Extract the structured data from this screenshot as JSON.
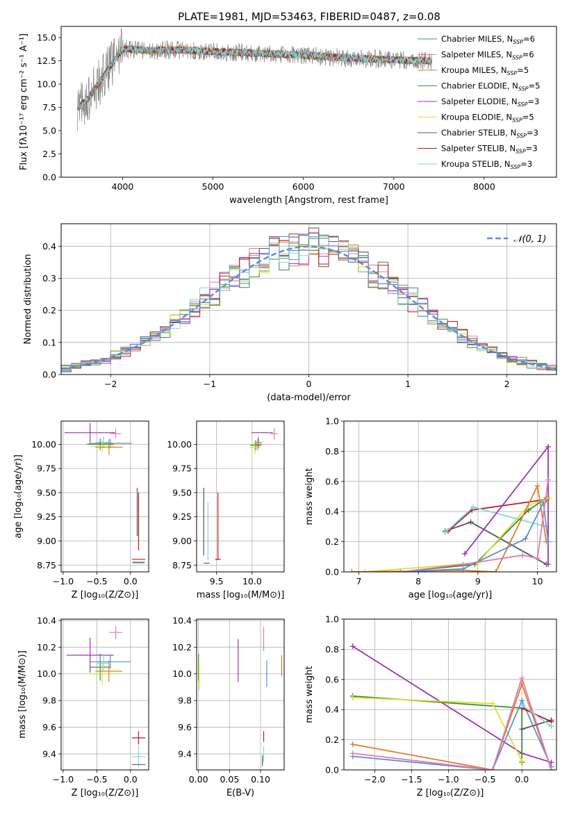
{
  "figure": {
    "title": "PLATE=1981, MJD=53463, FIBERID=0487, z=0.08"
  },
  "chart_data": [
    {
      "id": "spectrum",
      "type": "line",
      "xlabel": "wavelength [Angstrom, rest frame]",
      "ylabel": "Flux [fλ10⁻¹⁷ erg cm⁻² s⁻¹ A⁻¹]",
      "xlim": [
        3320,
        8800
      ],
      "ylim": [
        0,
        16.2
      ],
      "xticks": [
        4000,
        5000,
        6000,
        7000,
        8000
      ],
      "yticks": [
        0.0,
        2.5,
        5.0,
        7.5,
        10.0,
        12.5,
        15.0
      ],
      "grid": false,
      "legend_position": "top-right",
      "data_range": [
        3500,
        7420
      ],
      "continuum_model": {
        "x": [
          3500,
          3600,
          3800,
          4000,
          4300,
          4600,
          5000,
          5500,
          6000,
          6500,
          7000,
          7420
        ],
        "y": [
          7.5,
          8.2,
          11.0,
          13.8,
          13.6,
          13.7,
          13.5,
          13.3,
          13.1,
          12.8,
          12.6,
          12.5
        ]
      },
      "series": [
        {
          "name": "Chabrier MILES, N_SSP=6",
          "color": "#5a8a68"
        },
        {
          "name": "Salpeter MILES, N_SSP=6",
          "color": "#e07ab0"
        },
        {
          "name": "Kroupa MILES, N_SSP=5",
          "color": "#e07b2a"
        },
        {
          "name": "Chabrier ELODIE, N_SSP=5",
          "color": "#3a8a3a"
        },
        {
          "name": "Salpeter ELODIE, N_SSP=3",
          "color": "#a030b0"
        },
        {
          "name": "Kroupa ELODIE, N_SSP=5",
          "color": "#d8e030"
        },
        {
          "name": "Chabrier STELIB, N_SSP=3",
          "color": "#555555"
        },
        {
          "name": "Salpeter STELIB, N_SSP=3",
          "color": "#c01818"
        },
        {
          "name": "Kroupa STELIB, N_SSP=3",
          "color": "#7ad8e0"
        }
      ],
      "data_series": {
        "name": "data",
        "color": "#808080"
      }
    },
    {
      "id": "residuals",
      "type": "line",
      "xlabel": "(data-model)/error",
      "ylabel": "Normed distribution",
      "xlim": [
        -2.5,
        2.5
      ],
      "ylim": [
        0,
        0.47
      ],
      "xticks": [
        -2,
        -1,
        0,
        1,
        2
      ],
      "yticks": [
        0.0,
        0.1,
        0.2,
        0.3,
        0.4
      ],
      "grid": true,
      "legend_position": "top-right",
      "legend_label": "𝒩(0, 1)",
      "gaussian": {
        "mean": 0,
        "sigma": 1,
        "color": "#5b8fd6"
      },
      "histogram_bin_width": 0.1,
      "histogram_colors": [
        "#5a8a68",
        "#e07ab0",
        "#e07b2a",
        "#3a8a3a",
        "#a030b0",
        "#d8e030",
        "#555555",
        "#c01818",
        "#7ad8e0",
        "#5b8fd6"
      ]
    },
    {
      "id": "age_vs_Z",
      "type": "scatter",
      "xlabel": "Z [log₁₀(Z/Z⊙)]",
      "ylabel": "age  [log₁₀(age/yr)]",
      "xlim": [
        -1.03,
        0.27
      ],
      "ylim": [
        8.68,
        10.24
      ],
      "xticks": [
        -1.0,
        -0.5,
        0.0
      ],
      "xtick_labels": [
        "−1.0",
        "−0.5",
        "0.0"
      ],
      "yticks": [
        8.75,
        9.0,
        9.25,
        9.5,
        9.75,
        10.0
      ],
      "grid": true,
      "points": [
        {
          "x": -0.6,
          "y": 10.12,
          "xerr": 0.38,
          "yerr": 0.1,
          "color": "#a030b0"
        },
        {
          "x": -0.22,
          "y": 10.11,
          "xerr": 0.08,
          "yerr": 0.05,
          "color": "#e07ab0"
        },
        {
          "x": -0.3,
          "y": 10.01,
          "xerr": 0.32,
          "yerr": 0.05,
          "color": "#5b8fd6"
        },
        {
          "x": -0.4,
          "y": 10.02,
          "xerr": 0.12,
          "yerr": 0.06,
          "color": "#7ad8e0"
        },
        {
          "x": -0.45,
          "y": 10.0,
          "xerr": 0.2,
          "yerr": 0.06,
          "color": "#3a8a3a"
        },
        {
          "x": -0.42,
          "y": 9.98,
          "xerr": 0.18,
          "yerr": 0.06,
          "color": "#d8e030"
        },
        {
          "x": -0.32,
          "y": 9.97,
          "xerr": 0.2,
          "yerr": 0.08,
          "color": "#e07b2a"
        },
        {
          "x": 0.1,
          "y": 9.3,
          "xerr": 0.0,
          "yerr": 0.25,
          "color": "#555555"
        },
        {
          "x": 0.12,
          "y": 9.2,
          "xerr": 0.0,
          "yerr": 0.3,
          "color": "#c01818"
        },
        {
          "x": 0.12,
          "y": 8.81,
          "xerr": 0.1,
          "yerr": 0.0,
          "color": "#c01818"
        },
        {
          "x": 0.12,
          "y": 8.77,
          "xerr": 0.09,
          "yerr": 0.0,
          "color": "#7ad8e0"
        },
        {
          "x": 0.12,
          "y": 8.78,
          "xerr": 0.09,
          "yerr": 0.0,
          "color": "#555555"
        }
      ]
    },
    {
      "id": "age_vs_mass",
      "type": "scatter",
      "xlabel": "mass [log₁₀(M/M⊙)]",
      "ylabel": "",
      "xlim": [
        9.22,
        10.45
      ],
      "ylim": [
        8.68,
        10.24
      ],
      "xticks": [
        9.5,
        10.0
      ],
      "yticks": [
        8.75,
        9.0,
        9.25,
        9.5,
        9.75,
        10.0
      ],
      "grid": true,
      "points": [
        {
          "x": 10.14,
          "y": 10.12,
          "xerr": 0.15,
          "yerr": 0.0,
          "color": "#a030b0"
        },
        {
          "x": 10.31,
          "y": 10.11,
          "xerr": 0.05,
          "yerr": 0.06,
          "color": "#e07ab0"
        },
        {
          "x": 10.09,
          "y": 10.02,
          "xerr": 0.05,
          "yerr": 0.06,
          "color": "#5b8fd6"
        },
        {
          "x": 10.08,
          "y": 10.0,
          "xerr": 0.05,
          "yerr": 0.05,
          "color": "#7ad8e0"
        },
        {
          "x": 10.05,
          "y": 9.99,
          "xerr": 0.08,
          "yerr": 0.05,
          "color": "#3a8a3a"
        },
        {
          "x": 10.04,
          "y": 9.97,
          "xerr": 0.07,
          "yerr": 0.07,
          "color": "#d8e030"
        },
        {
          "x": 10.08,
          "y": 10.0,
          "xerr": 0.06,
          "yerr": 0.06,
          "color": "#e07b2a"
        },
        {
          "x": 9.32,
          "y": 9.2,
          "xerr": 0.0,
          "yerr": 0.35,
          "color": "#555555"
        },
        {
          "x": 9.52,
          "y": 9.15,
          "xerr": 0.0,
          "yerr": 0.35,
          "color": "#c01818"
        },
        {
          "x": 9.52,
          "y": 8.81,
          "xerr": 0.04,
          "yerr": 0.0,
          "color": "#c01818"
        },
        {
          "x": 9.38,
          "y": 9.1,
          "xerr": 0.0,
          "yerr": 0.3,
          "color": "#7ad8e0"
        },
        {
          "x": 9.36,
          "y": 8.77,
          "xerr": 0.04,
          "yerr": 0.0,
          "color": "#555555"
        }
      ]
    },
    {
      "id": "weight_vs_age",
      "type": "line",
      "xlabel": "age  [log₁₀(age/yr)]",
      "ylabel": "mass weight",
      "xlim": [
        6.75,
        10.32
      ],
      "ylim": [
        0,
        1.0
      ],
      "xticks": [
        7,
        8,
        9,
        10
      ],
      "yticks": [
        0.0,
        0.2,
        0.4,
        0.6,
        0.8,
        1.0
      ],
      "grid": true,
      "series": [
        {
          "color": "#555555",
          "x": [
            8.45,
            8.88,
            10.15
          ],
          "y": [
            0.27,
            0.33,
            0.05
          ]
        },
        {
          "color": "#c01818",
          "x": [
            8.5,
            8.9,
            10.15
          ],
          "y": [
            0.27,
            0.41,
            0.48
          ]
        },
        {
          "color": "#7ad8e0",
          "x": [
            8.45,
            8.92,
            10.15
          ],
          "y": [
            0.26,
            0.43,
            0.3
          ]
        },
        {
          "color": "#a030b0",
          "x": [
            8.78,
            10.18,
            10.18
          ],
          "y": [
            0.12,
            0.83,
            0.05
          ]
        },
        {
          "color": "#3a8a3a",
          "x": [
            7.7,
            8.95,
            9.85,
            10.15
          ],
          "y": [
            0.0,
            0.05,
            0.41,
            0.49
          ]
        },
        {
          "color": "#d8e030",
          "x": [
            7.1,
            9.0,
            9.85,
            10.2
          ],
          "y": [
            0.0,
            0.06,
            0.44,
            0.49
          ]
        },
        {
          "color": "#e07b2a",
          "x": [
            6.88,
            8.75,
            9.3,
            10.0,
            10.15
          ],
          "y": [
            0.0,
            0.01,
            0.0,
            0.57,
            0.2
          ]
        },
        {
          "color": "#5b8fd6",
          "x": [
            7.7,
            8.75,
            9.8,
            10.1,
            10.18
          ],
          "y": [
            0.0,
            0.02,
            0.22,
            0.46,
            0.2
          ]
        },
        {
          "color": "#e07ab0",
          "x": [
            7.7,
            8.75,
            9.75,
            10.0,
            10.18
          ],
          "y": [
            0.0,
            0.05,
            0.11,
            0.09,
            0.61
          ]
        }
      ]
    },
    {
      "id": "mass_vs_Z",
      "type": "scatter",
      "xlabel": "Z [log₁₀(Z/Z⊙)]",
      "ylabel": "mass [log₁₀(M/M⊙)]",
      "xlim": [
        -1.03,
        0.27
      ],
      "ylim": [
        9.28,
        10.41
      ],
      "xticks": [
        -1.0,
        -0.5,
        0.0
      ],
      "xtick_labels": [
        "−1.0",
        "−0.5",
        "0.0"
      ],
      "yticks": [
        9.4,
        9.6,
        9.8,
        10.0,
        10.2,
        10.4
      ],
      "grid": true,
      "points": [
        {
          "x": -0.6,
          "y": 10.14,
          "xerr": 0.35,
          "yerr": 0.13,
          "color": "#a030b0"
        },
        {
          "x": -0.22,
          "y": 10.31,
          "xerr": 0.1,
          "yerr": 0.05,
          "color": "#e07ab0"
        },
        {
          "x": -0.3,
          "y": 10.09,
          "xerr": 0.3,
          "yerr": 0.05,
          "color": "#5b8fd6"
        },
        {
          "x": -0.45,
          "y": 10.05,
          "xerr": 0.15,
          "yerr": 0.1,
          "color": "#3a8a3a"
        },
        {
          "x": -0.42,
          "y": 10.0,
          "xerr": 0.2,
          "yerr": 0.08,
          "color": "#d8e030"
        },
        {
          "x": -0.32,
          "y": 10.02,
          "xerr": 0.2,
          "yerr": 0.08,
          "color": "#e07b2a"
        },
        {
          "x": -0.4,
          "y": 10.08,
          "xerr": 0.1,
          "yerr": 0.06,
          "color": "#7ad8e0"
        },
        {
          "x": 0.12,
          "y": 9.52,
          "xerr": 0.1,
          "yerr": 0.05,
          "color": "#c01818"
        },
        {
          "x": 0.12,
          "y": 9.38,
          "xerr": 0.1,
          "yerr": 0.08,
          "color": "#7ad8e0"
        },
        {
          "x": 0.12,
          "y": 9.32,
          "xerr": 0.1,
          "yerr": 0.0,
          "color": "#555555"
        }
      ]
    },
    {
      "id": "mass_vs_ebv",
      "type": "scatter",
      "xlabel": "E(B-V)",
      "ylabel": "",
      "xlim": [
        -0.003,
        0.138
      ],
      "ylim": [
        9.28,
        10.41
      ],
      "xticks": [
        0.0,
        0.05,
        0.1
      ],
      "xtick_labels": [
        "0.00",
        "0.05",
        "0.10"
      ],
      "yticks": [
        9.4,
        9.6,
        9.8,
        10.0,
        10.2,
        10.4
      ],
      "grid": true,
      "points": [
        {
          "x": 0.0,
          "y": 10.05,
          "xerr": 0.0,
          "yerr": 0.1,
          "color": "#3a8a3a"
        },
        {
          "x": 0.001,
          "y": 9.98,
          "xerr": 0.0,
          "yerr": 0.1,
          "color": "#d8e030"
        },
        {
          "x": 0.064,
          "y": 10.1,
          "xerr": 0.0,
          "yerr": 0.16,
          "color": "#a030b0"
        },
        {
          "x": 0.105,
          "y": 10.26,
          "xerr": 0.0,
          "yerr": 0.09,
          "color": "#e07ab0"
        },
        {
          "x": 0.11,
          "y": 10.0,
          "xerr": 0.0,
          "yerr": 0.1,
          "color": "#5b8fd6"
        },
        {
          "x": 0.134,
          "y": 10.06,
          "xerr": 0.0,
          "yerr": 0.08,
          "color": "#e07b2a"
        },
        {
          "x": 0.105,
          "y": 9.53,
          "xerr": 0.0,
          "yerr": 0.04,
          "color": "#c01818"
        },
        {
          "x": 0.105,
          "y": 9.4,
          "xerr": 0.0,
          "yerr": 0.06,
          "color": "#7ad8e0"
        },
        {
          "x": 0.103,
          "y": 9.35,
          "xerr": 0.0,
          "yerr": 0.04,
          "color": "#555555"
        }
      ]
    },
    {
      "id": "weight_vs_Z",
      "type": "line",
      "xlabel": "Z [log₁₀(Z/Z⊙)]",
      "ylabel": "mass weight",
      "xlim": [
        -2.42,
        0.47
      ],
      "ylim": [
        0,
        1.0
      ],
      "xticks": [
        -2.0,
        -1.5,
        -1.0,
        -0.5,
        0.0
      ],
      "xtick_labels": [
        "−2.0",
        "−1.5",
        "−1.0",
        "−0.5",
        "0.0"
      ],
      "yticks": [
        0.0,
        0.2,
        0.4,
        0.6,
        0.8,
        1.0
      ],
      "grid": true,
      "series": [
        {
          "color": "#a030b0",
          "x": [
            -2.3,
            0.0,
            0.4
          ],
          "y": [
            0.82,
            0.11,
            0.05
          ]
        },
        {
          "color": "#3a8a3a",
          "x": [
            -2.3,
            0.0,
            0.0
          ],
          "y": [
            0.49,
            0.41,
            0.05
          ]
        },
        {
          "color": "#d8e030",
          "x": [
            -2.3,
            -0.4,
            0.0
          ],
          "y": [
            0.48,
            0.44,
            0.06
          ]
        },
        {
          "color": "#e07b2a",
          "x": [
            -2.3,
            -0.4,
            0.0,
            0.4
          ],
          "y": [
            0.17,
            0.0,
            0.57,
            0.0
          ]
        },
        {
          "color": "#5b8fd6",
          "x": [
            -2.3,
            -0.4,
            0.0,
            0.4
          ],
          "y": [
            0.09,
            0.0,
            0.46,
            0.02
          ]
        },
        {
          "color": "#e07ab0",
          "x": [
            -2.3,
            -0.4,
            0.0,
            0.4
          ],
          "y": [
            0.11,
            0.0,
            0.61,
            0.0
          ]
        },
        {
          "color": "#555555",
          "x": [
            0.0,
            0.4
          ],
          "y": [
            0.27,
            0.33
          ]
        },
        {
          "color": "#c01818",
          "x": [
            0.0,
            0.4
          ],
          "y": [
            0.41,
            0.32
          ]
        },
        {
          "color": "#7ad8e0",
          "x": [
            0.0,
            0.4
          ],
          "y": [
            0.43,
            0.29
          ]
        }
      ]
    }
  ]
}
